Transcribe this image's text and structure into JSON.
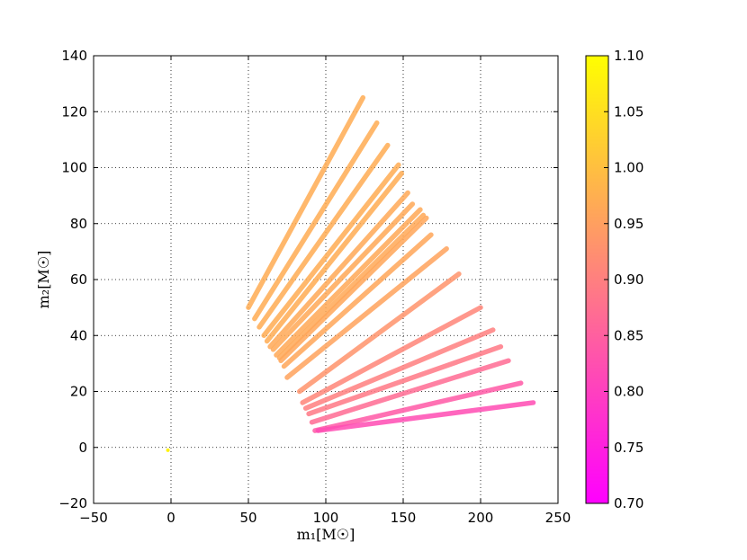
{
  "chart_data": {
    "type": "scatter",
    "title": "",
    "xlabel": "m₁[M☉]",
    "ylabel": "m₂[M☉]",
    "xlim": [
      -50,
      250
    ],
    "ylim": [
      -20,
      140
    ],
    "xticks": [
      -50,
      0,
      50,
      100,
      150,
      200,
      250
    ],
    "yticks": [
      -20,
      0,
      20,
      40,
      60,
      80,
      100,
      120,
      140
    ],
    "xtick_labels": [
      "−50",
      "0",
      "50",
      "100",
      "150",
      "200",
      "250"
    ],
    "ytick_labels": [
      "−20",
      "0",
      "20",
      "40",
      "60",
      "80",
      "100",
      "120",
      "140"
    ],
    "grid": true,
    "colorbar": {
      "min": 0.7,
      "max": 1.1,
      "ticks": [
        0.7,
        0.75,
        0.8,
        0.85,
        0.9,
        0.95,
        1.0,
        1.05,
        1.1
      ],
      "tick_labels": [
        "0.70",
        "0.75",
        "0.80",
        "0.85",
        "0.90",
        "0.95",
        "1.00",
        "1.05",
        "1.10"
      ],
      "colormap": "spring",
      "colors": {
        "low": "#ff00ff",
        "high": "#ffff00"
      }
    },
    "segments": [
      {
        "x0": 50,
        "y0": 50,
        "x1": 124,
        "y1": 125,
        "value": 0.97
      },
      {
        "x0": 54,
        "y0": 46,
        "x1": 133,
        "y1": 116,
        "value": 0.97
      },
      {
        "x0": 57,
        "y0": 43,
        "x1": 140,
        "y1": 108,
        "value": 0.97
      },
      {
        "x0": 60,
        "y0": 40,
        "x1": 147,
        "y1": 101,
        "value": 0.97
      },
      {
        "x0": 62,
        "y0": 38,
        "x1": 149,
        "y1": 98,
        "value": 0.97
      },
      {
        "x0": 64,
        "y0": 36,
        "x1": 153,
        "y1": 91,
        "value": 0.965
      },
      {
        "x0": 66,
        "y0": 35,
        "x1": 156,
        "y1": 87,
        "value": 0.965
      },
      {
        "x0": 68,
        "y0": 33,
        "x1": 161,
        "y1": 85,
        "value": 0.965
      },
      {
        "x0": 70,
        "y0": 32,
        "x1": 163,
        "y1": 83,
        "value": 0.965
      },
      {
        "x0": 71,
        "y0": 31,
        "x1": 165,
        "y1": 82,
        "value": 0.96
      },
      {
        "x0": 73,
        "y0": 29,
        "x1": 168,
        "y1": 76,
        "value": 0.96
      },
      {
        "x0": 75,
        "y0": 25,
        "x1": 178,
        "y1": 71,
        "value": 0.955
      },
      {
        "x0": 83,
        "y0": 20,
        "x1": 186,
        "y1": 62,
        "value": 0.93
      },
      {
        "x0": 85,
        "y0": 16,
        "x1": 200,
        "y1": 50,
        "value": 0.91
      },
      {
        "x0": 87,
        "y0": 14,
        "x1": 208,
        "y1": 42,
        "value": 0.9
      },
      {
        "x0": 89,
        "y0": 12,
        "x1": 213,
        "y1": 36,
        "value": 0.89
      },
      {
        "x0": 91,
        "y0": 9,
        "x1": 218,
        "y1": 31,
        "value": 0.87
      },
      {
        "x0": 93,
        "y0": 6,
        "x1": 226,
        "y1": 23,
        "value": 0.84
      },
      {
        "x0": 95,
        "y0": 6,
        "x1": 234,
        "y1": 16,
        "value": 0.82
      }
    ],
    "points": [
      {
        "x": -2,
        "y": -1,
        "value": 1.08
      }
    ]
  }
}
